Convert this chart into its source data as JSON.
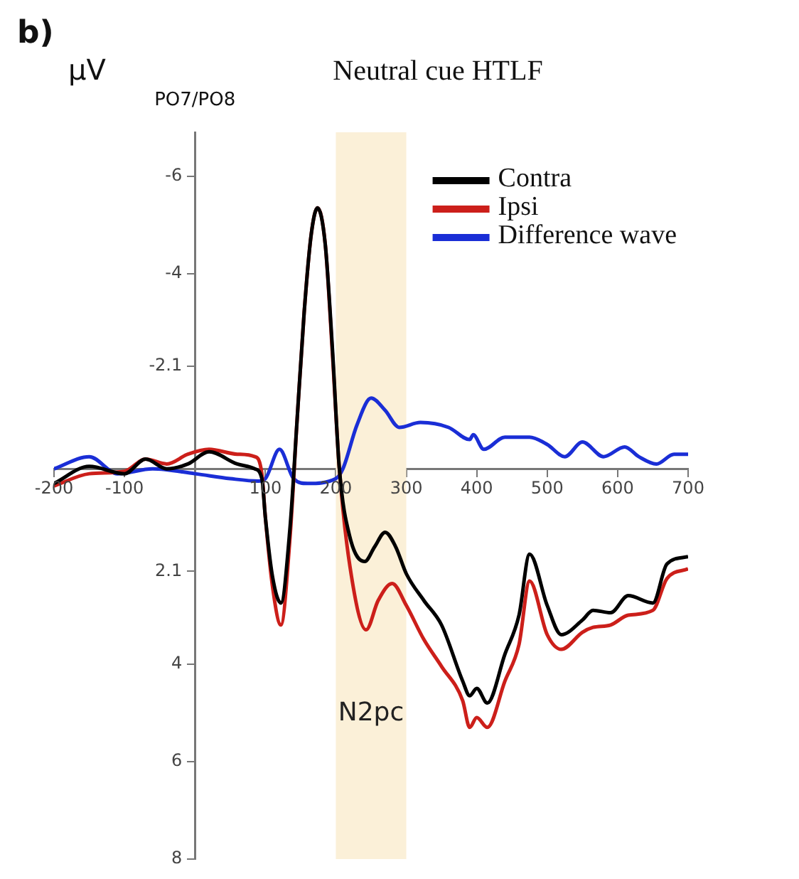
{
  "chart_data": {
    "type": "line",
    "title": "Neutral cue HTLF",
    "subtitle": "PO7/PO8",
    "ylabel": "μV",
    "annotations": [
      "b)"
    ],
    "xlim": [
      -200,
      700
    ],
    "xticks": [
      -200,
      -100,
      100,
      200,
      300,
      400,
      500,
      600,
      700
    ],
    "ylim": [
      8,
      -6.9
    ],
    "yticks": [
      -6,
      -4,
      -2.1,
      2.1,
      4,
      6,
      8
    ],
    "grid": false,
    "legend": "top right",
    "marker": "none",
    "line_style": "solid",
    "bands": [
      {
        "axis": "x",
        "from": 200,
        "to": 300,
        "label": "N2pc",
        "color": "#fbf0d8"
      }
    ],
    "series": [
      {
        "name": "Contra",
        "color": "#000000",
        "x": [
          -200,
          -150,
          -100,
          -70,
          -40,
          -10,
          20,
          60,
          85,
          95,
          100,
          110,
          122,
          135,
          145,
          155,
          165,
          174,
          185,
          195,
          205,
          220,
          241,
          255,
          270,
          285,
          300,
          325,
          350,
          380,
          390,
          400,
          415,
          440,
          460,
          475,
          500,
          520,
          550,
          565,
          590,
          615,
          650,
          670,
          700
        ],
        "values": [
          0.3,
          -0.05,
          0.1,
          -0.2,
          0,
          -0.1,
          -0.35,
          -0.1,
          0,
          0.2,
          1.0,
          2.2,
          2.75,
          1.2,
          -1.0,
          -3.2,
          -4.8,
          -5.35,
          -4.6,
          -2.5,
          0,
          1.4,
          1.9,
          1.6,
          1.3,
          1.6,
          2.15,
          2.7,
          3.2,
          4.35,
          4.65,
          4.5,
          4.8,
          3.8,
          3.0,
          1.75,
          2.8,
          3.4,
          3.1,
          2.9,
          2.95,
          2.6,
          2.75,
          1.95,
          1.8
        ]
      },
      {
        "name": "Ipsi",
        "color": "#cc1f1a",
        "x": [
          -200,
          -150,
          -100,
          -70,
          -40,
          -10,
          20,
          60,
          85,
          95,
          100,
          110,
          122,
          135,
          145,
          155,
          165,
          174,
          185,
          195,
          205,
          220,
          243,
          260,
          280,
          300,
          325,
          350,
          380,
          390,
          400,
          415,
          440,
          460,
          475,
          500,
          520,
          550,
          565,
          590,
          615,
          650,
          670,
          700
        ],
        "values": [
          0.35,
          0.1,
          0.05,
          -0.2,
          -0.1,
          -0.3,
          -0.4,
          -0.3,
          -0.25,
          0.1,
          1.0,
          2.4,
          3.2,
          1.4,
          -1.0,
          -3.2,
          -4.8,
          -5.35,
          -4.6,
          -2.4,
          0,
          2.0,
          3.3,
          2.7,
          2.35,
          2.8,
          3.5,
          4.05,
          4.75,
          5.3,
          5.1,
          5.3,
          4.35,
          3.6,
          2.3,
          3.4,
          3.7,
          3.35,
          3.25,
          3.2,
          3.0,
          2.9,
          2.25,
          2.05
        ]
      },
      {
        "name": "Difference wave",
        "color": "#1a2ed6",
        "x": [
          -200,
          -150,
          -110,
          -60,
          0,
          50,
          90,
          100,
          120,
          140,
          160,
          200,
          210,
          230,
          250,
          270,
          290,
          320,
          360,
          390,
          395,
          410,
          440,
          475,
          500,
          525,
          550,
          580,
          610,
          630,
          655,
          680,
          700
        ],
        "values": [
          0,
          -0.25,
          0.1,
          0,
          0.1,
          0.2,
          0.25,
          0.2,
          -0.4,
          0.2,
          0.3,
          0.2,
          0,
          -0.9,
          -1.45,
          -1.2,
          -0.85,
          -0.95,
          -0.85,
          -0.6,
          -0.7,
          -0.4,
          -0.65,
          -0.65,
          -0.5,
          -0.25,
          -0.55,
          -0.25,
          -0.45,
          -0.25,
          -0.1,
          -0.3,
          -0.3
        ]
      }
    ]
  }
}
